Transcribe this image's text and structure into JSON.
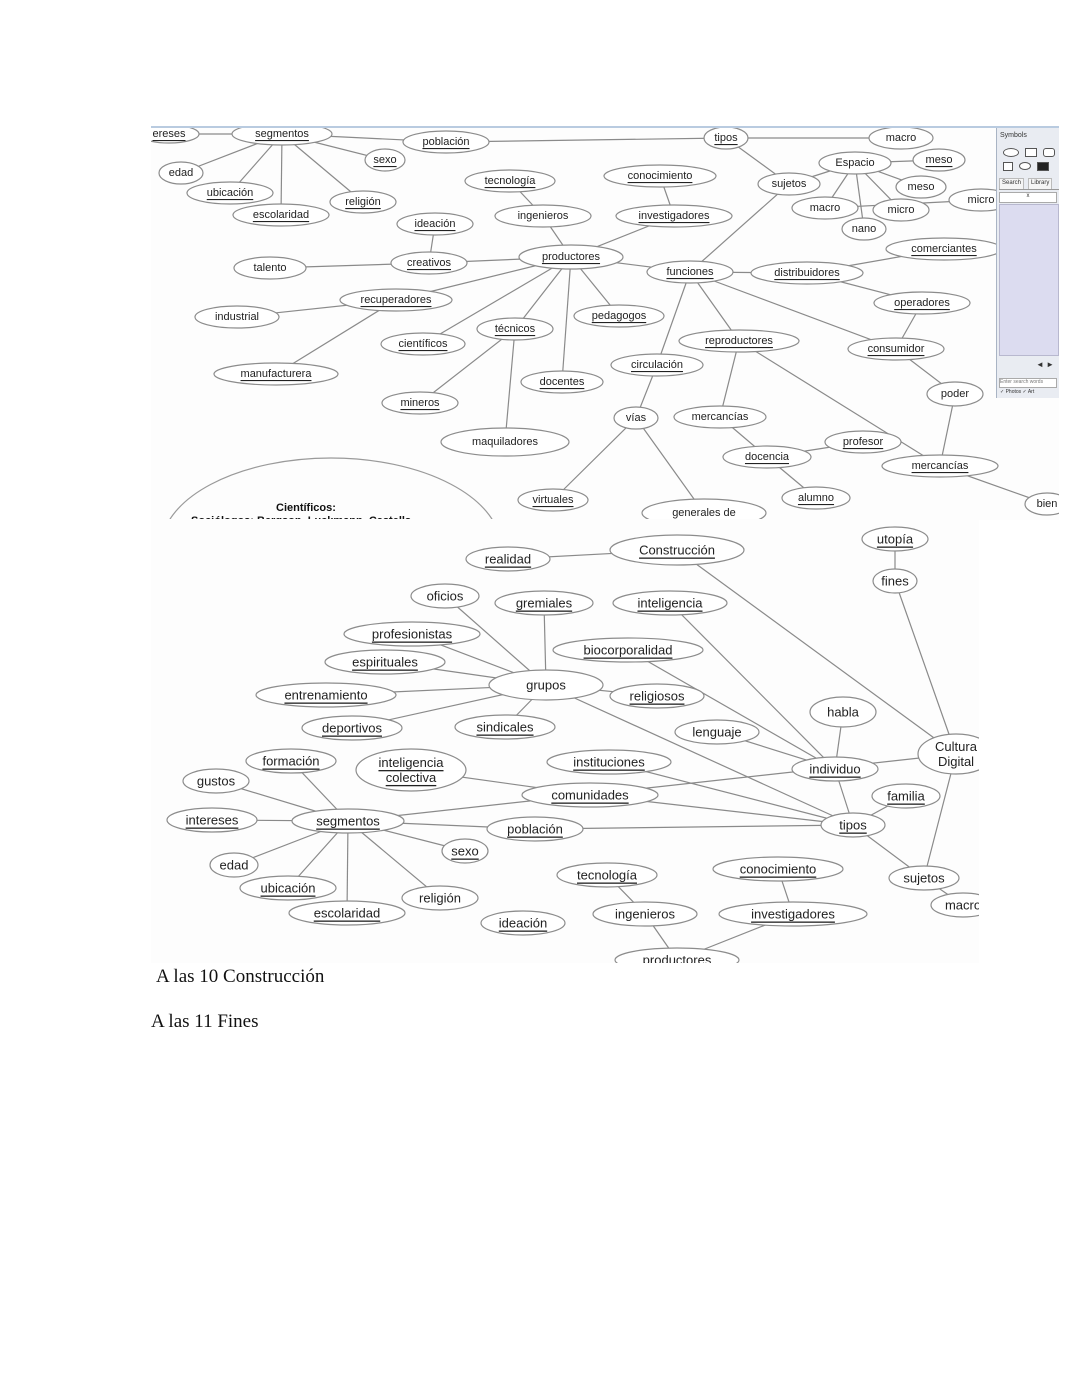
{
  "screenshot_top": {
    "nodes": [
      "ereses",
      "segmentos",
      "población",
      "tipos",
      "macro",
      "edad",
      "sexo",
      "ubicación",
      "religión",
      "escolaridad",
      "tecnología",
      "conocimiento",
      "sujetos",
      "Espacio",
      "meso",
      "meso",
      "macro",
      "micro",
      "nano",
      "micro",
      "ideación",
      "ingenieros",
      "investigadores",
      "creativos",
      "productores",
      "funciones",
      "distribuidores",
      "comerciantes",
      "talento",
      "industrial",
      "recuperadores",
      "operadores",
      "pedagogos",
      "técnicos",
      "científicos",
      "manufacturera",
      "reproductores",
      "consumidor",
      "circulación",
      "docentes",
      "mineros",
      "vías",
      "mercancías",
      "poder",
      "maquiladores",
      "profesor",
      "docencia",
      "mercancías",
      "alumno",
      "virtuales",
      "generales de",
      "bien"
    ],
    "cut_text_1": "Científicos:",
    "cut_text_2": "Sociólogos: Bergson, Luckmann, Castells",
    "symbols_panel": {
      "title": "Symbols",
      "tab_search": "Search",
      "tab_library": "Library",
      "search_placeholder": "x",
      "search_web": "Enter search words",
      "checks": "✓ Photos ✓ Art",
      "arrows": "◄ ►"
    }
  },
  "screenshot_bottom": {
    "nodes": [
      "realidad",
      "Construcción",
      "utopía",
      "fines",
      "oficios",
      "gremiales",
      "inteligencia",
      "profesionistas",
      "biocorporalidad",
      "espirituales",
      "grupos",
      "entrenamiento",
      "religiosos",
      "habla",
      "deportivos",
      "sindicales",
      "lenguaje",
      "Cultura Digital",
      "formación",
      "inteligencia colectiva",
      "instituciones",
      "individuo",
      "gustos",
      "comunidades",
      "familia",
      "intereses",
      "segmentos",
      "población",
      "tipos",
      "edad",
      "sexo",
      "tecnología",
      "conocimiento",
      "sujetos",
      "ubicación",
      "religión",
      "ingenieros",
      "investigadores",
      "macro",
      "escolaridad",
      "ideación",
      "productores"
    ]
  },
  "captions": {
    "line1": "A las 10 Construcción",
    "line2": "A las 11 Fines"
  }
}
